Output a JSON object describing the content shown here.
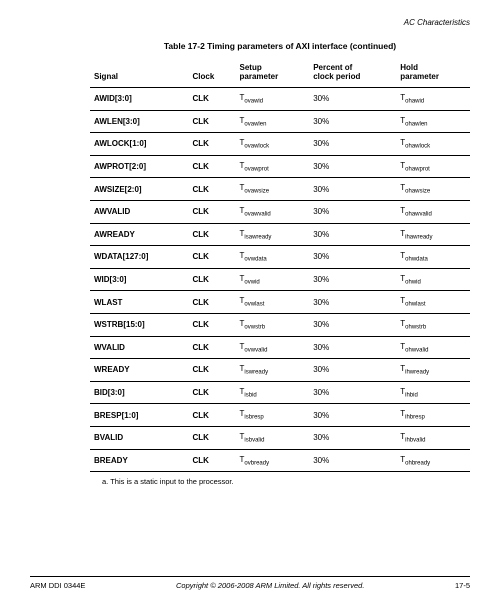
{
  "header_section": "AC Characteristics",
  "table_caption": "Table 17-2 Timing parameters of AXI interface (continued)",
  "columns": {
    "c0": "Signal",
    "c1": "Clock",
    "c2_a": "Setup",
    "c2_b": "parameter",
    "c3_a": "Percent of",
    "c3_b": "clock period",
    "c4_a": "Hold",
    "c4_b": "parameter"
  },
  "rows": [
    {
      "signal": "AWID[3:0]",
      "clock": "CLK",
      "setup_sub": "ovawid",
      "pct": "30%",
      "hold_sub": "ohawid"
    },
    {
      "signal": "AWLEN[3:0]",
      "clock": "CLK",
      "setup_sub": "ovawlen",
      "pct": "30%",
      "hold_sub": "ohawlen"
    },
    {
      "signal": "AWLOCK[1:0]",
      "clock": "CLK",
      "setup_sub": "ovawlock",
      "pct": "30%",
      "hold_sub": "ohawlock"
    },
    {
      "signal": "AWPROT[2:0]",
      "clock": "CLK",
      "setup_sub": "ovawprot",
      "pct": "30%",
      "hold_sub": "ohawprot"
    },
    {
      "signal": "AWSIZE[2:0]",
      "clock": "CLK",
      "setup_sub": "ovawsize",
      "pct": "30%",
      "hold_sub": "ohawsize"
    },
    {
      "signal": "AWVALID",
      "clock": "CLK",
      "setup_sub": "ovawvalid",
      "pct": "30%",
      "hold_sub": "ohawvalid"
    },
    {
      "signal": "AWREADY",
      "clock": "CLK",
      "setup_sub": "isawready",
      "pct": "30%",
      "hold_sub": "ihawready"
    },
    {
      "signal": "WDATA[127:0]",
      "clock": "CLK",
      "setup_sub": "ovwdata",
      "pct": "30%",
      "hold_sub": "ohwdata"
    },
    {
      "signal": "WID[3:0]",
      "clock": "CLK",
      "setup_sub": "ovwid",
      "pct": "30%",
      "hold_sub": "ohwid"
    },
    {
      "signal": "WLAST",
      "clock": "CLK",
      "setup_sub": "ovwlast",
      "pct": "30%",
      "hold_sub": "ohwlast"
    },
    {
      "signal": "WSTRB[15:0]",
      "clock": "CLK",
      "setup_sub": "ovwstrb",
      "pct": "30%",
      "hold_sub": "ohwstrb"
    },
    {
      "signal": "WVALID",
      "clock": "CLK",
      "setup_sub": "ovwvalid",
      "pct": "30%",
      "hold_sub": "ohwvalid"
    },
    {
      "signal": "WREADY",
      "clock": "CLK",
      "setup_sub": "iswready",
      "pct": "30%",
      "hold_sub": "ihwready"
    },
    {
      "signal": "BID[3:0]",
      "clock": "CLK",
      "setup_sub": "isbid",
      "pct": "30%",
      "hold_sub": "ihbid"
    },
    {
      "signal": "BRESP[1:0]",
      "clock": "CLK",
      "setup_sub": "isbresp",
      "pct": "30%",
      "hold_sub": "ihbresp"
    },
    {
      "signal": "BVALID",
      "clock": "CLK",
      "setup_sub": "isbvalid",
      "pct": "30%",
      "hold_sub": "ihbvalid"
    },
    {
      "signal": "BREADY",
      "clock": "CLK",
      "setup_sub": "ovbready",
      "pct": "30%",
      "hold_sub": "ohbready"
    }
  ],
  "footnote": "a.   This is a static input to the processor.",
  "footer": {
    "left": "ARM DDI 0344E",
    "mid": "Copyright © 2006-2008 ARM Limited. All rights reserved.",
    "right": "17-5"
  }
}
